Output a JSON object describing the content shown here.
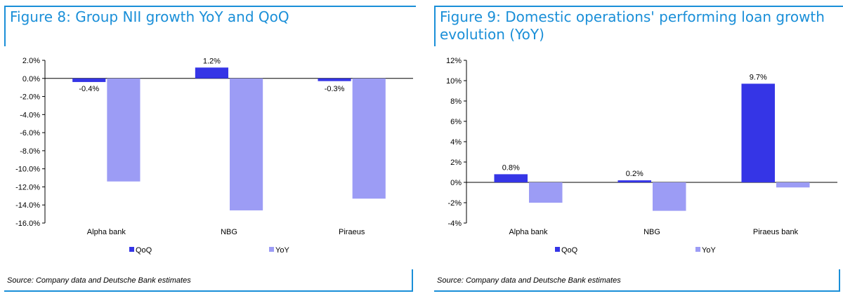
{
  "colors": {
    "accent": "#1a8fd8",
    "qoq": "#3535e6",
    "yoy": "#9c9cf5"
  },
  "chart_data": [
    {
      "type": "bar",
      "title": "Figure 8: Group NII growth YoY and QoQ",
      "source": "Source: Company data and Deutsche Bank estimates",
      "categories": [
        "Alpha bank",
        "NBG",
        "Piraeus"
      ],
      "series": [
        {
          "name": "QoQ",
          "values": [
            -0.4,
            1.2,
            -0.3
          ]
        },
        {
          "name": "YoY",
          "values": [
            -11.4,
            -14.6,
            -13.3
          ]
        }
      ],
      "data_labels": {
        "QoQ": [
          "-0.4%",
          "1.2%",
          "-0.3%"
        ]
      },
      "ylim": [
        -16,
        2
      ],
      "yticks": [
        2,
        0,
        -2,
        -4,
        -6,
        -8,
        -10,
        -12,
        -14,
        -16
      ],
      "ytick_labels": [
        "2.0%",
        "0.0%",
        "-2.0%",
        "-4.0%",
        "-6.0%",
        "-8.0%",
        "-10.0%",
        "-12.0%",
        "-14.0%",
        "-16.0%"
      ],
      "grid": false,
      "legend": "bottom"
    },
    {
      "type": "bar",
      "title": "Figure 9: Domestic operations' performing loan growth evolution (YoY)",
      "source": "Source: Company data and Deutsche Bank estimates",
      "categories": [
        "Alpha bank",
        "NBG",
        "Piraeus bank"
      ],
      "series": [
        {
          "name": "QoQ",
          "values": [
            0.8,
            0.2,
            9.7
          ]
        },
        {
          "name": "YoY",
          "values": [
            -2.0,
            -2.8,
            -0.5
          ]
        }
      ],
      "data_labels": {
        "QoQ": [
          "0.8%",
          "0.2%",
          "9.7%"
        ]
      },
      "ylim": [
        -4,
        12
      ],
      "yticks": [
        12,
        10,
        8,
        6,
        4,
        2,
        0,
        -2,
        -4
      ],
      "ytick_labels": [
        "12%",
        "10%",
        "8%",
        "6%",
        "4%",
        "2%",
        "0%",
        "-2%",
        "-4%"
      ],
      "grid": false,
      "legend": "bottom"
    }
  ]
}
